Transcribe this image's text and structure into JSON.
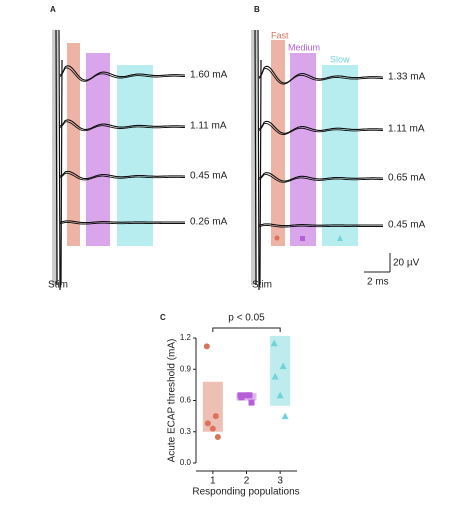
{
  "panel_a": {
    "label": "A",
    "stim": "Stim",
    "traces": [
      "1.60 mA",
      "1.11 mA",
      "0.45 mA",
      "0.26 mA"
    ]
  },
  "panel_b": {
    "label": "B",
    "stim": "Stim",
    "bands": [
      "Fast",
      "Medium",
      "Slow"
    ],
    "traces": [
      "1.33 mA",
      "1.11 mA",
      "0.65 mA",
      "0.45 mA"
    ],
    "scale_y": "20 µV",
    "scale_x": "2 ms"
  },
  "chart_data": {
    "type": "scatter",
    "label": "C",
    "xlabel": "Responding populations",
    "ylabel": "Acute ECAP threshold (mA)",
    "annotation": "p < 0.05",
    "xlim": [
      0.5,
      3.5
    ],
    "xticks": [
      1,
      2,
      3
    ],
    "ylim": [
      0.0,
      1.2
    ],
    "yticks": [
      {
        "value": 0,
        "label": "0.0"
      },
      {
        "value": 0.3,
        "label": "0.3"
      },
      {
        "value": 0.6,
        "label": "0.6"
      },
      {
        "value": 0.9,
        "label": "0.9"
      },
      {
        "value": 1.2,
        "label": "1.2"
      }
    ],
    "series": [
      {
        "name": "Fast",
        "color": "#d9735a",
        "marker": "circle",
        "x": [
          1,
          1,
          1,
          1,
          1
        ],
        "values": [
          1.12,
          0.45,
          0.38,
          0.33,
          0.25
        ],
        "range": [
          0.3,
          0.78
        ]
      },
      {
        "name": "Medium",
        "color": "#b65fd6",
        "marker": "square",
        "x": [
          2,
          2,
          2,
          2,
          2
        ],
        "values": [
          0.65,
          0.65,
          0.63,
          0.65,
          0.58
        ],
        "range": [
          0.6,
          0.67
        ]
      },
      {
        "name": "Slow",
        "color": "#6fd3d8",
        "marker": "triangle",
        "x": [
          3,
          3,
          3,
          3,
          3
        ],
        "values": [
          1.15,
          0.93,
          0.83,
          0.65,
          0.45
        ],
        "range": [
          0.55,
          1.22
        ]
      }
    ]
  }
}
